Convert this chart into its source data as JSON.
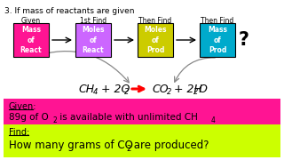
{
  "bg_color": "#ffffff",
  "title_text": "3. If mass of reactants are given",
  "labels_top": [
    "Given",
    "1st Find",
    "Then Find",
    "Then Find"
  ],
  "box_texts": [
    "Mass\nof\nReact",
    "Moles\nof\nReact",
    "Moles\nof\nProd",
    "Mass\nof\nProd"
  ],
  "box_colors": [
    "#ff1493",
    "#cc66ff",
    "#cccc00",
    "#00aacc"
  ],
  "box_text_colors": [
    "#ffffff",
    "#ffffff",
    "#ffffff",
    "#ffffff"
  ],
  "given_bg": "#ff1493",
  "find_bg": "#ccff00",
  "given_label": "Given:",
  "find_label": "Find:"
}
